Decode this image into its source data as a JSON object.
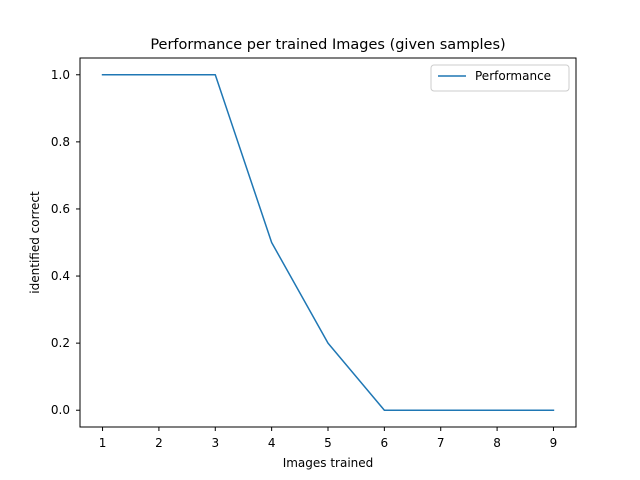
{
  "chart_data": {
    "type": "line",
    "title": "Performance per trained Images (given samples)",
    "xlabel": "Images trained",
    "ylabel": "identified correct",
    "x": [
      1,
      2,
      3,
      4,
      5,
      6,
      7,
      8,
      9
    ],
    "series": [
      {
        "name": "Performance",
        "values": [
          1.0,
          1.0,
          1.0,
          0.5,
          0.2,
          0.0,
          0.0,
          0.0,
          0.0
        ],
        "color": "#1f77b4"
      }
    ],
    "xlim": [
      0.6,
      9.4
    ],
    "ylim": [
      -0.05,
      1.05
    ],
    "xticks": [
      "1",
      "2",
      "3",
      "4",
      "5",
      "6",
      "7",
      "8",
      "9"
    ],
    "yticks": [
      "0.0",
      "0.2",
      "0.4",
      "0.6",
      "0.8",
      "1.0"
    ],
    "grid": false,
    "legend_position": "top-right"
  }
}
